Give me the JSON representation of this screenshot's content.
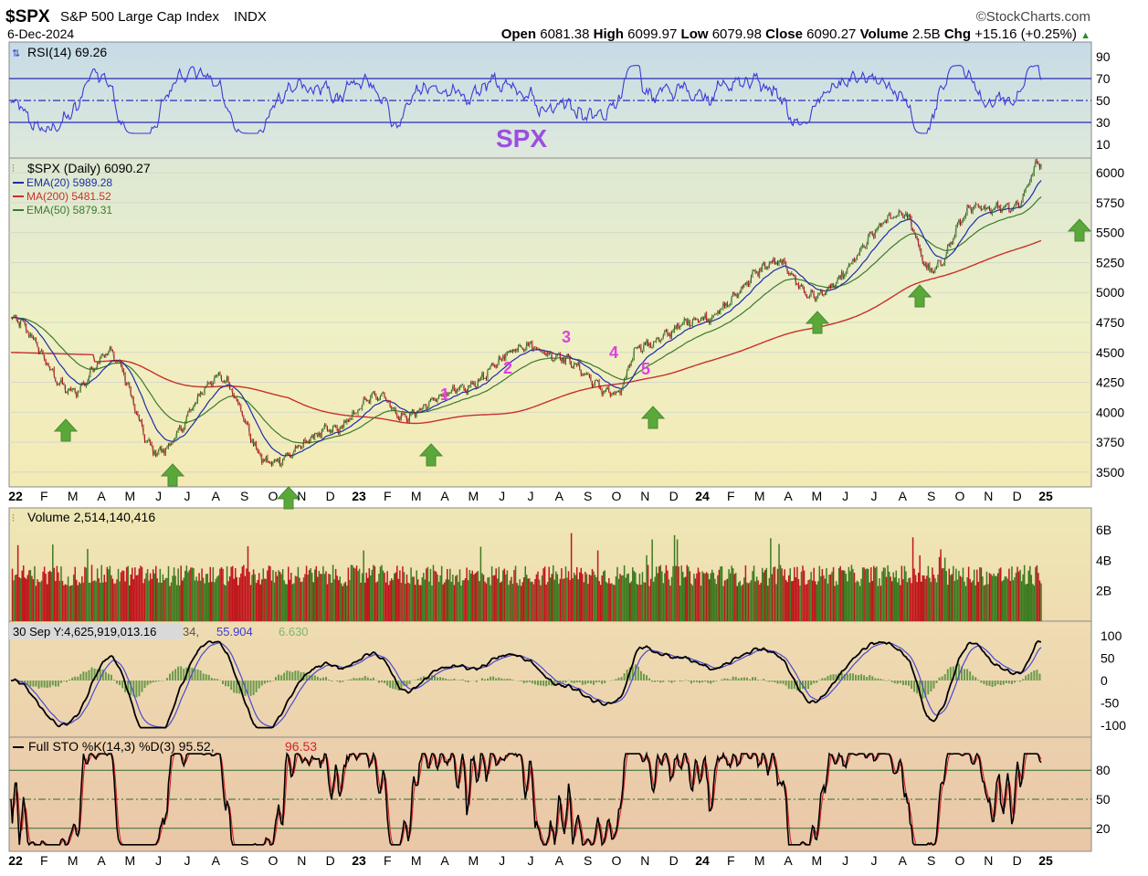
{
  "header": {
    "symbol": "$SPX",
    "name": "S&P 500 Large Cap Index",
    "exchange": "INDX",
    "brand": "©StockCharts.com",
    "date": "6-Dec-2024",
    "open_label": "Open",
    "open": "6081.38",
    "high_label": "High",
    "high": "6099.97",
    "low_label": "Low",
    "low": "6079.98",
    "close_label": "Close",
    "close": "6090.27",
    "volume_label": "Volume",
    "volume": "2.5B",
    "chg_label": "Chg",
    "chg": "+15.16 (+0.25%)",
    "chg_arrow": "▲"
  },
  "rsi_panel": {
    "label": "RSI(14) 69.26",
    "watermark": "SPX",
    "ticks": [
      "90",
      "70",
      "50",
      "30",
      "10"
    ],
    "tick_values": [
      90,
      70,
      50,
      30,
      10
    ],
    "ylim": [
      0,
      100
    ],
    "bands": [
      70,
      50,
      30
    ],
    "color": "#3b3bd6"
  },
  "price_panel": {
    "label": "$SPX (Daily) 6090.27",
    "legend": [
      {
        "text": "EMA(20) 5989.28",
        "color": "#1a2ea8"
      },
      {
        "text": "MA(200) 5481.52",
        "color": "#c8302a"
      },
      {
        "text": "EMA(50) 5879.31",
        "color": "#3a7a2a"
      }
    ],
    "ticks": [
      "6000",
      "5750",
      "5500",
      "5250",
      "5000",
      "4750",
      "4500",
      "4250",
      "4000",
      "3750",
      "3500"
    ],
    "tick_values": [
      6000,
      5750,
      5500,
      5250,
      5000,
      4750,
      4500,
      4250,
      4000,
      3750,
      3500
    ],
    "ylim": [
      3400,
      6100
    ],
    "wave_labels": [
      "1",
      "2",
      "3",
      "4",
      "5"
    ],
    "wave_color": "#e040e0",
    "arrow_color": "#5aa83a"
  },
  "x_axis": {
    "labels": [
      "22",
      "F",
      "M",
      "A",
      "M",
      "J",
      "J",
      "A",
      "S",
      "O",
      "N",
      "D",
      "23",
      "F",
      "M",
      "A",
      "M",
      "J",
      "J",
      "A",
      "S",
      "O",
      "N",
      "D",
      "24",
      "F",
      "M",
      "A",
      "M",
      "J",
      "J",
      "A",
      "S",
      "O",
      "N",
      "D",
      "25"
    ],
    "bold": [
      "22",
      "23",
      "24",
      "25"
    ]
  },
  "volume_panel": {
    "label": "Volume 2,514,140,416",
    "ticks": [
      "6B",
      "4B",
      "2B"
    ],
    "tick_values": [
      6,
      4,
      2
    ],
    "ylim": [
      0,
      7.2
    ],
    "up_color": "#3d7a1f",
    "down_color": "#c0161b"
  },
  "macd_panel": {
    "tooltip": "30 Sep Y:4,625,919,013.16",
    "label_hidden": "34,",
    "value_signal": "55.904",
    "value_hist": "6.630",
    "ticks": [
      "100",
      "50",
      "0",
      "-50",
      "-100"
    ],
    "tick_values": [
      100,
      50,
      0,
      -50,
      -100
    ],
    "ylim": [
      -120,
      120
    ]
  },
  "sto_panel": {
    "label_prefix": "Full STO %K(14,3) %D(3) 95.52,",
    "label_d": "96.53",
    "ticks": [
      "80",
      "50",
      "20"
    ],
    "tick_values": [
      80,
      50,
      20
    ],
    "ylim": [
      0,
      100
    ]
  },
  "chart_data": {
    "type": "line",
    "title": "$SPX S&P 500 Large Cap Index INDX",
    "series": [
      {
        "name": "$SPX (Daily)",
        "x": [
          "2022-01",
          "2022-03",
          "2022-04",
          "2022-06",
          "2022-08",
          "2022-10",
          "2022-12",
          "2023-02",
          "2023-03",
          "2023-05",
          "2023-07",
          "2023-08",
          "2023-10",
          "2023-11",
          "2024-01",
          "2024-03",
          "2024-04",
          "2024-07",
          "2024-08",
          "2024-09",
          "2024-11",
          "2024-12"
        ],
        "values": [
          4780,
          4170,
          4500,
          3670,
          4290,
          3580,
          3850,
          4150,
          3960,
          4180,
          4560,
          4470,
          4150,
          4550,
          4780,
          5250,
          4970,
          5660,
          5180,
          5700,
          5720,
          6090
        ]
      }
    ],
    "ylim": [
      3400,
      6100
    ]
  }
}
